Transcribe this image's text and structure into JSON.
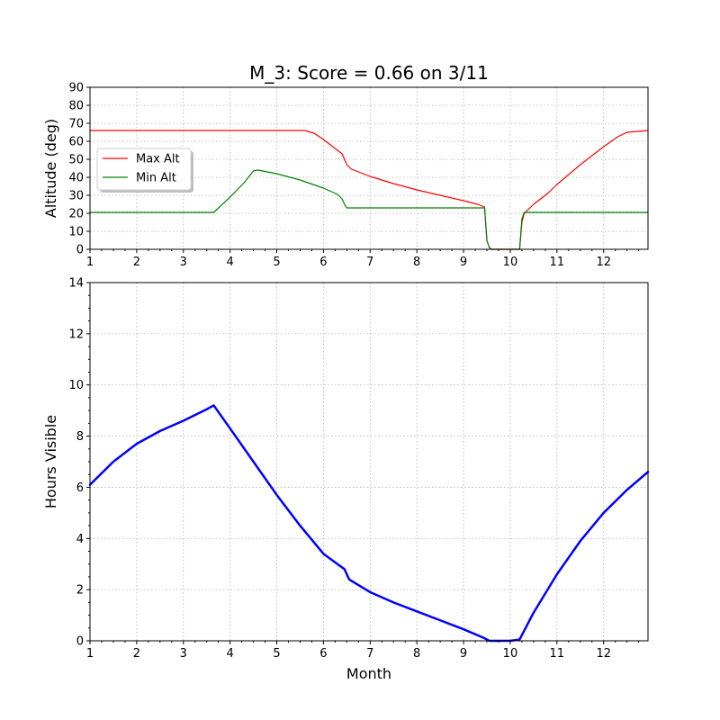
{
  "chart_data": [
    {
      "type": "line",
      "title": "M_3: Score = 0.66 on 3/11",
      "xlabel": "",
      "ylabel": "Altitude (deg)",
      "xlim": [
        1,
        12.95
      ],
      "ylim": [
        0,
        90
      ],
      "xticks": [
        1,
        2,
        3,
        4,
        5,
        6,
        7,
        8,
        9,
        10,
        11,
        12
      ],
      "yticks": [
        0,
        10,
        20,
        30,
        40,
        50,
        60,
        70,
        80,
        90
      ],
      "grid": true,
      "legend_position": "center-left",
      "series": [
        {
          "name": "Max Alt",
          "color": "#ff0000",
          "x": [
            1,
            5.6,
            5.8,
            6.0,
            6.2,
            6.4,
            6.5,
            6.6,
            6.8,
            7.0,
            7.5,
            8.0,
            8.5,
            9.0,
            9.3,
            9.45,
            9.5,
            9.55,
            9.6,
            10.0,
            10.2,
            10.25,
            10.3,
            10.5,
            10.8,
            11.0,
            11.5,
            12.0,
            12.3,
            12.5,
            12.95
          ],
          "y": [
            66,
            66,
            64.5,
            61,
            57,
            53,
            47,
            44.5,
            42.5,
            40.5,
            36.5,
            33,
            30,
            27,
            25,
            23.5,
            5,
            1,
            0,
            0,
            0,
            15,
            20,
            25,
            31,
            36,
            47,
            57,
            62.5,
            65,
            66
          ]
        },
        {
          "name": "Min Alt",
          "color": "#008000",
          "x": [
            1,
            3.65,
            4.0,
            4.3,
            4.5,
            4.6,
            4.8,
            5.0,
            5.5,
            6.0,
            6.3,
            6.4,
            6.45,
            6.5,
            6.6,
            7.0,
            8.0,
            9.0,
            9.45,
            9.5,
            9.55,
            9.6,
            10.0,
            10.2,
            10.25,
            10.3,
            10.5,
            11.0,
            12.0,
            12.95
          ],
          "y": [
            20.5,
            20.5,
            29,
            37,
            43.5,
            44,
            43,
            42,
            38.5,
            34,
            30.5,
            28,
            25,
            23,
            23,
            23,
            23,
            23,
            23,
            5,
            1,
            0,
            0,
            0,
            17,
            20.5,
            20.5,
            20.5,
            20.5,
            20.5
          ]
        }
      ]
    },
    {
      "type": "line",
      "title": "",
      "xlabel": "Month",
      "ylabel": "Hours Visible",
      "xlim": [
        1,
        12.95
      ],
      "ylim": [
        0,
        14
      ],
      "xticks": [
        1,
        2,
        3,
        4,
        5,
        6,
        7,
        8,
        9,
        10,
        11,
        12
      ],
      "yticks": [
        0,
        2,
        4,
        6,
        8,
        10,
        12,
        14
      ],
      "grid": true,
      "series": [
        {
          "name": "Hours Visible",
          "color": "#0000ff",
          "x": [
            1,
            1.5,
            2.0,
            2.5,
            3.0,
            3.5,
            3.65,
            4.0,
            4.5,
            5.0,
            5.5,
            6.0,
            6.3,
            6.45,
            6.55,
            7.0,
            7.5,
            8.0,
            8.5,
            9.0,
            9.45,
            9.55,
            10.0,
            10.2,
            10.5,
            11.0,
            11.5,
            12.0,
            12.5,
            12.95
          ],
          "y": [
            6.1,
            7.0,
            7.7,
            8.2,
            8.6,
            9.05,
            9.2,
            8.3,
            7.0,
            5.7,
            4.5,
            3.4,
            3.0,
            2.8,
            2.4,
            1.9,
            1.5,
            1.15,
            0.8,
            0.45,
            0.1,
            0,
            0,
            0.05,
            1.1,
            2.6,
            3.9,
            5.0,
            5.9,
            6.6
          ]
        }
      ]
    }
  ]
}
